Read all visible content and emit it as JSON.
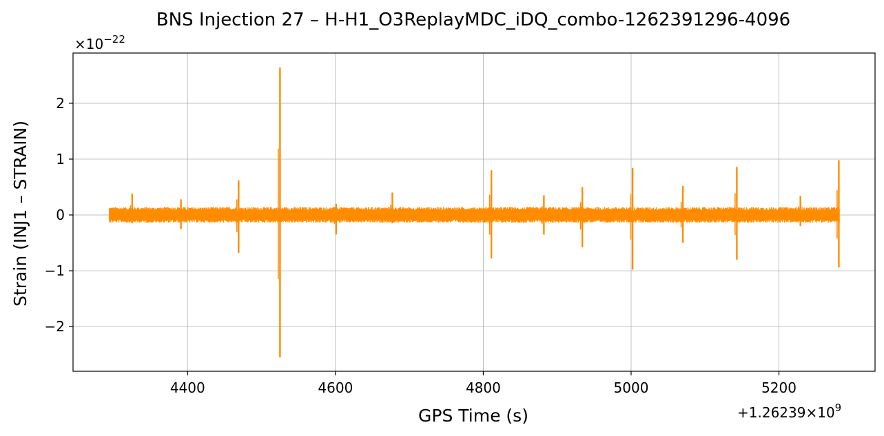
{
  "chart_data": {
    "type": "line",
    "title": "BNS Injection 27 – H-H1_O3ReplayMDC_iDQ_combo-1262391296-4096",
    "xlabel": "GPS Time (s)",
    "ylabel": "Strain (INJ1 – STRAIN)",
    "x_offset_label": "+1.26239×10",
    "x_offset_exp": "9",
    "y_scale_label": "×10",
    "y_scale_exp": "−22",
    "xlim": [
      4245,
      5330
    ],
    "ylim": [
      -2.8,
      2.9
    ],
    "xticks": [
      4400,
      4600,
      4800,
      5000,
      5200
    ],
    "yticks": [
      -2,
      -1,
      0,
      1,
      2
    ],
    "ytick_labels": [
      "−2",
      "−1",
      "0",
      "1",
      "2"
    ],
    "grid": true,
    "line_color": "#ff8c00",
    "series": [
      {
        "x_range": [
          4294,
          5282
        ],
        "baseline_amplitude": 0.14,
        "spikes": [
          {
            "x": 4325,
            "high": 0.38,
            "low": -0.15
          },
          {
            "x": 4391,
            "high": 0.28,
            "low": -0.25
          },
          {
            "x": 4469,
            "high": 0.62,
            "low": -0.68
          },
          {
            "x": 4525,
            "high": 2.64,
            "low": -2.55
          },
          {
            "x": 4601,
            "high": 0.2,
            "low": -0.35
          },
          {
            "x": 4677,
            "high": 0.4,
            "low": -0.15
          },
          {
            "x": 4811,
            "high": 0.8,
            "low": -0.78
          },
          {
            "x": 4882,
            "high": 0.35,
            "low": -0.35
          },
          {
            "x": 4934,
            "high": 0.5,
            "low": -0.58
          },
          {
            "x": 5002,
            "high": 0.84,
            "low": -0.98
          },
          {
            "x": 5070,
            "high": 0.52,
            "low": -0.5
          },
          {
            "x": 5143,
            "high": 0.86,
            "low": -0.8
          },
          {
            "x": 5229,
            "high": 0.34,
            "low": -0.2
          },
          {
            "x": 5281,
            "high": 0.98,
            "low": -0.94
          }
        ]
      }
    ]
  }
}
